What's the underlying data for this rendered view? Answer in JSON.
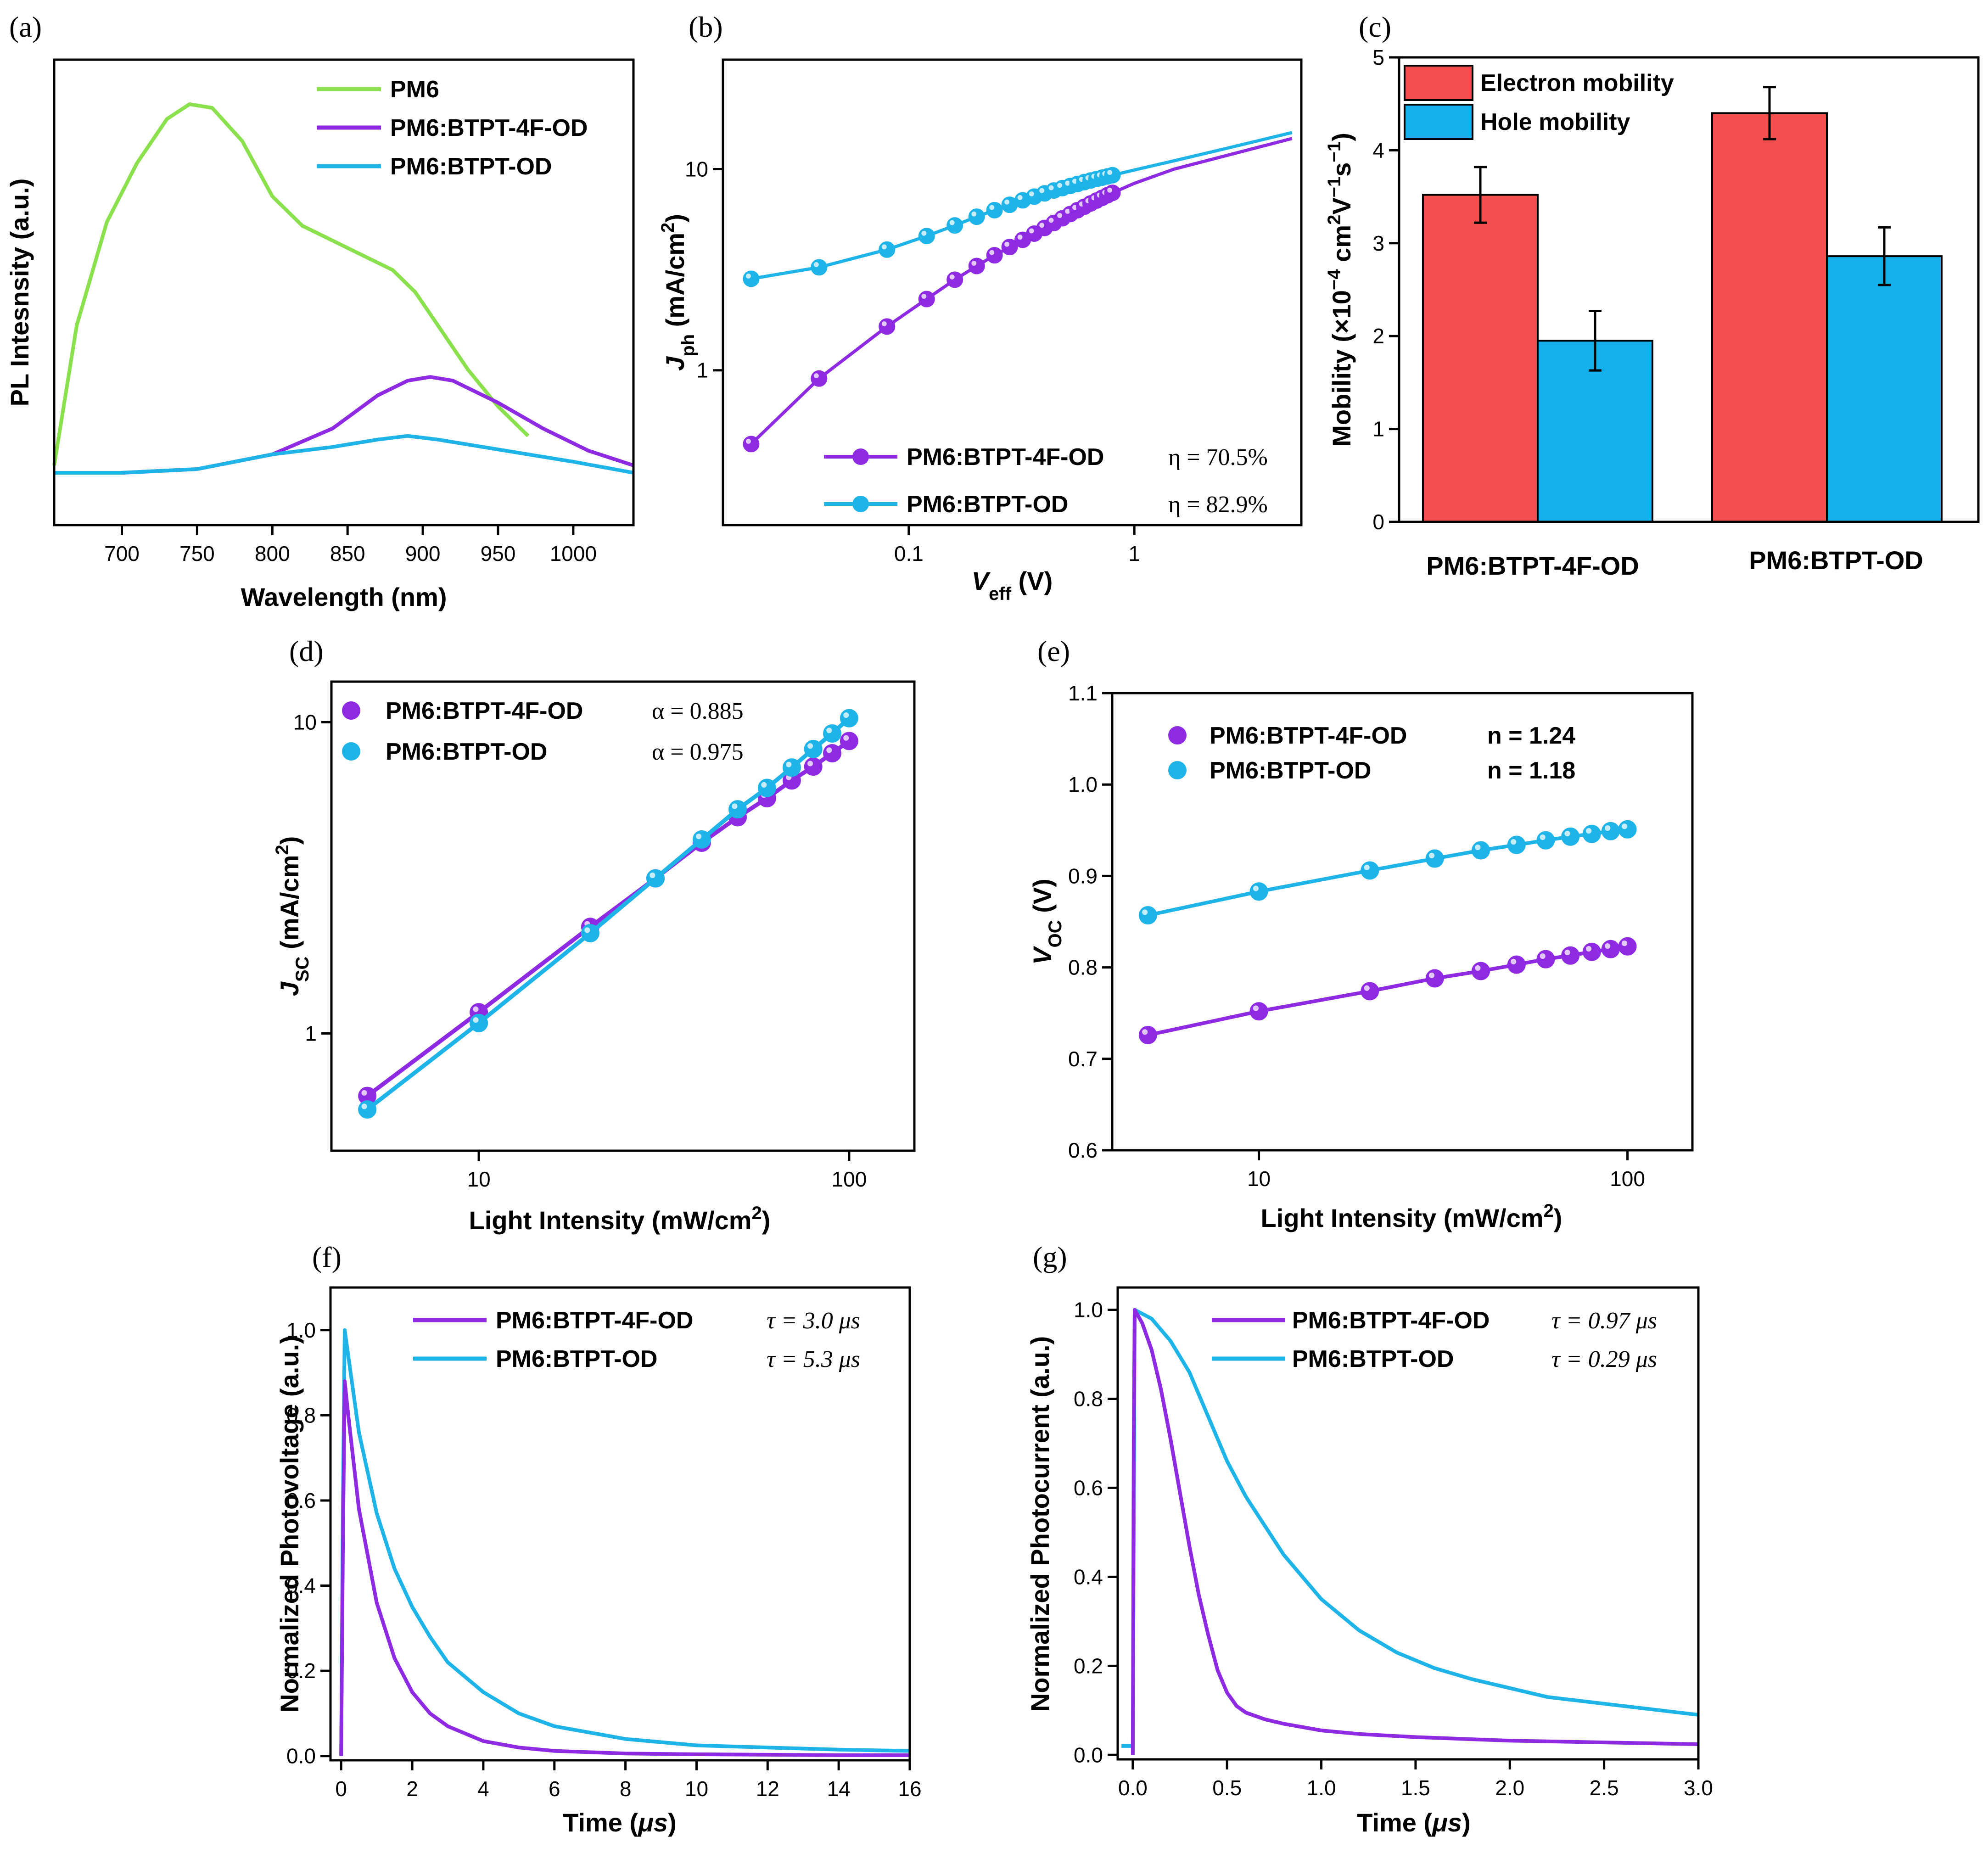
{
  "colors": {
    "green": "#8BE04E",
    "purple": "#8E2BE2",
    "cyan": "#1EB4E8",
    "red": "#F44E4E",
    "bar_cyan": "#14B0EB",
    "axis": "#000000"
  },
  "panels": {
    "a": {
      "label": "(a)"
    },
    "b": {
      "label": "(b)"
    },
    "c": {
      "label": "(c)"
    },
    "d": {
      "label": "(d)"
    },
    "e": {
      "label": "(e)"
    },
    "f": {
      "label": "(f)"
    },
    "g": {
      "label": "(g)"
    }
  },
  "chart_data": [
    {
      "id": "a",
      "type": "line",
      "title": "",
      "xlabel": "Wavelength (nm)",
      "ylabel": "PL Intesnsity (a.u.)",
      "xlim": [
        655,
        1040
      ],
      "ylim": [
        0,
        1.1
      ],
      "xticks": [
        700,
        750,
        800,
        850,
        900,
        950,
        1000
      ],
      "legend": "top-right",
      "series": [
        {
          "name": "PM6",
          "color": "green",
          "x": [
            655,
            670,
            690,
            710,
            730,
            745,
            760,
            780,
            800,
            820,
            850,
            880,
            895,
            910,
            930,
            950,
            970
          ],
          "y": [
            0.02,
            0.4,
            0.68,
            0.84,
            0.96,
            1.0,
            0.99,
            0.9,
            0.75,
            0.67,
            0.61,
            0.55,
            0.49,
            0.4,
            0.28,
            0.18,
            0.1
          ]
        },
        {
          "name": "PM6:BTPT-4F-OD",
          "color": "purple",
          "x": [
            655,
            700,
            750,
            800,
            840,
            870,
            890,
            905,
            920,
            950,
            980,
            1010,
            1040
          ],
          "y": [
            0.0,
            0.0,
            0.01,
            0.05,
            0.12,
            0.21,
            0.25,
            0.26,
            0.25,
            0.19,
            0.12,
            0.06,
            0.02
          ]
        },
        {
          "name": "PM6:BTPT-OD",
          "color": "cyan",
          "x": [
            655,
            700,
            750,
            800,
            840,
            870,
            890,
            910,
            940,
            970,
            1000,
            1040
          ],
          "y": [
            0.0,
            0.0,
            0.01,
            0.05,
            0.07,
            0.09,
            0.1,
            0.09,
            0.07,
            0.05,
            0.03,
            0.0
          ]
        }
      ]
    },
    {
      "id": "b",
      "type": "line",
      "scale": "log-log",
      "title": "",
      "xlabel": "Veff (V)",
      "ylabel": "Jph (mA/cm2)",
      "xlabel_main": "V",
      "xlabel_sub": "eff",
      "xlabel_unit": " (V)",
      "ylabel_main": "J",
      "ylabel_sub": "ph",
      "ylabel_unit": " (mA/cm",
      "ylabel_sup": "2",
      "ylabel_close": ")",
      "xlim": [
        0.015,
        5.5
      ],
      "ylim": [
        0.17,
        35
      ],
      "xticks": [
        0.1,
        1
      ],
      "xtick_labels": [
        "0.1",
        "1"
      ],
      "yticks": [
        1,
        10
      ],
      "ytick_labels": [
        "1",
        "10"
      ],
      "legend": "bottom-right",
      "series": [
        {
          "name": "PM6:BTPT-4F-OD",
          "color": "purple",
          "eta": "η = 70.5%",
          "x": [
            0.02,
            0.04,
            0.08,
            0.12,
            0.16,
            0.2,
            0.24,
            0.28,
            0.32,
            0.36,
            0.4,
            0.44,
            0.48,
            0.52,
            0.56,
            0.6,
            0.64,
            0.68,
            0.72,
            0.76,
            0.8,
            1,
            1.5,
            2.5,
            5
          ],
          "y": [
            0.43,
            0.91,
            1.65,
            2.26,
            2.82,
            3.3,
            3.73,
            4.1,
            4.45,
            4.78,
            5.1,
            5.4,
            5.7,
            5.98,
            6.25,
            6.5,
            6.75,
            6.98,
            7.2,
            7.42,
            7.62,
            8.5,
            10.0,
            11.6,
            14.2
          ]
        },
        {
          "name": "PM6:BTPT-OD",
          "color": "cyan",
          "eta": "η = 82.9%",
          "x": [
            0.02,
            0.04,
            0.08,
            0.12,
            0.16,
            0.2,
            0.24,
            0.28,
            0.32,
            0.36,
            0.4,
            0.44,
            0.48,
            0.52,
            0.56,
            0.6,
            0.64,
            0.68,
            0.72,
            0.76,
            0.8,
            1,
            1.5,
            2.5,
            5
          ],
          "y": [
            2.85,
            3.25,
            3.98,
            4.65,
            5.25,
            5.8,
            6.25,
            6.65,
            7.0,
            7.3,
            7.58,
            7.83,
            8.05,
            8.25,
            8.44,
            8.62,
            8.78,
            8.93,
            9.07,
            9.2,
            9.33,
            9.9,
            11.0,
            12.6,
            15.2
          ]
        }
      ]
    },
    {
      "id": "c",
      "type": "bar",
      "title": "",
      "xlabel": "",
      "ylabel": "Mobility (×10−4 cm2V−1s−1)",
      "ylabel_head": "Mobility (×10",
      "ylabel_e1": "−4",
      "ylabel_mid": " cm",
      "ylabel_e2": "2",
      "ylabel_v": "V",
      "ylabel_e3": "−1",
      "ylabel_s": "s",
      "ylabel_e4": "−1",
      "ylabel_close": ")",
      "categories": [
        "PM6:BTPT-4F-OD",
        "PM6:BTPT-OD"
      ],
      "ylim": [
        0,
        5
      ],
      "yticks": [
        0,
        1,
        2,
        3,
        4,
        5
      ],
      "legend": "top-left",
      "series": [
        {
          "name": "Electron mobility",
          "color": "red",
          "values": [
            3.52,
            4.4
          ],
          "errors": [
            0.3,
            0.28
          ]
        },
        {
          "name": "Hole mobility",
          "color": "bar_cyan",
          "values": [
            1.95,
            2.86
          ],
          "errors": [
            0.32,
            0.31
          ]
        }
      ]
    },
    {
      "id": "d",
      "type": "scatter",
      "scale": "log-log",
      "title": "",
      "xlabel": "Light Intensity (mW/cm2)",
      "ylabel": "Jsc (mA/cm2)",
      "xlabel_main": "Light Intensity (mW/cm",
      "xlabel_sup": "2",
      "xlabel_close": ")",
      "ylabel_main": "J",
      "ylabel_sub": "SC",
      "ylabel_unit": " (mA/cm",
      "ylabel_sup": "2",
      "ylabel_close": ")",
      "xlim": [
        4.0,
        150
      ],
      "ylim": [
        0.42,
        13.5
      ],
      "xticks": [
        10,
        100
      ],
      "xtick_labels": [
        "10",
        "100"
      ],
      "yticks": [
        1,
        10
      ],
      "ytick_labels": [
        "1",
        "10"
      ],
      "legend": "top-left",
      "series": [
        {
          "name": "PM6:BTPT-4F-OD",
          "color": "purple",
          "alpha": "α = 0.885",
          "x": [
            5,
            10,
            20,
            30,
            40,
            50,
            60,
            70,
            80,
            90,
            100
          ],
          "y": [
            0.63,
            1.17,
            2.2,
            3.15,
            4.1,
            4.95,
            5.7,
            6.5,
            7.2,
            7.95,
            8.7
          ]
        },
        {
          "name": "PM6:BTPT-OD",
          "color": "cyan",
          "alpha": "α = 0.975",
          "x": [
            5,
            10,
            20,
            30,
            40,
            50,
            60,
            70,
            80,
            90,
            100
          ],
          "y": [
            0.57,
            1.08,
            2.1,
            3.15,
            4.2,
            5.25,
            6.15,
            7.15,
            8.2,
            9.2,
            10.3
          ]
        }
      ]
    },
    {
      "id": "e",
      "type": "scatter",
      "scale": "log-x",
      "title": "",
      "xlabel": "Light Intensity (mW/cm2)",
      "ylabel": "VOC (V)",
      "xlabel_main": "Light Intensity (mW/cm",
      "xlabel_sup": "2",
      "xlabel_close": ")",
      "ylabel_main": "V",
      "ylabel_sub": "OC",
      "ylabel_unit": " (V)",
      "xlim": [
        4.0,
        150
      ],
      "ylim": [
        0.6,
        1.1
      ],
      "xticks": [
        10,
        100
      ],
      "xtick_labels": [
        "10",
        "100"
      ],
      "yticks": [
        0.6,
        0.7,
        0.8,
        0.9,
        1.0,
        1.1
      ],
      "ytick_labels": [
        "0.6",
        "0.7",
        "0.8",
        "0.9",
        "1.0",
        "1.1"
      ],
      "legend": "top-left",
      "series": [
        {
          "name": "PM6:BTPT-4F-OD",
          "color": "purple",
          "n": "n = 1.24",
          "x": [
            5,
            10,
            20,
            30,
            40,
            50,
            60,
            70,
            80,
            90,
            100
          ],
          "y": [
            0.726,
            0.752,
            0.774,
            0.788,
            0.796,
            0.803,
            0.809,
            0.813,
            0.817,
            0.82,
            0.823
          ]
        },
        {
          "name": "PM6:BTPT-OD",
          "color": "cyan",
          "n": "n = 1.18",
          "x": [
            5,
            10,
            20,
            30,
            40,
            50,
            60,
            70,
            80,
            90,
            100
          ],
          "y": [
            0.857,
            0.883,
            0.906,
            0.919,
            0.928,
            0.934,
            0.939,
            0.943,
            0.946,
            0.949,
            0.951
          ]
        }
      ]
    },
    {
      "id": "f",
      "type": "line",
      "title": "",
      "xlabel": "Time (μs)",
      "ylabel": "Normalized Photovoltage (a.u.)",
      "xlabel_main": "Time (",
      "xlabel_mu": "μs",
      "xlabel_close": ")",
      "xlim": [
        -0.3,
        16
      ],
      "ylim": [
        -0.01,
        1.1
      ],
      "xticks": [
        0,
        2,
        4,
        6,
        8,
        10,
        12,
        14,
        16
      ],
      "yticks": [
        0.0,
        0.2,
        0.4,
        0.6,
        0.8,
        1.0
      ],
      "ytick_labels": [
        "0.0",
        "0.2",
        "0.4",
        "0.6",
        "0.8",
        "1.0"
      ],
      "legend": "top-right",
      "series": [
        {
          "name": "PM6:BTPT-4F-OD",
          "color": "purple",
          "tau": "τ = 3.0 μs",
          "x": [
            0,
            0.05,
            0.1,
            0.2,
            0.5,
            1,
            1.5,
            2,
            2.5,
            3,
            4,
            5,
            6,
            8,
            10,
            12,
            14,
            16
          ],
          "y": [
            0.0,
            0.5,
            0.88,
            0.8,
            0.58,
            0.36,
            0.23,
            0.15,
            0.1,
            0.07,
            0.035,
            0.02,
            0.012,
            0.006,
            0.004,
            0.003,
            0.002,
            0.002
          ]
        },
        {
          "name": "PM6:BTPT-OD",
          "color": "cyan",
          "tau": "τ = 5.3 μs",
          "x": [
            0,
            0.05,
            0.1,
            0.2,
            0.5,
            1,
            1.5,
            2,
            2.5,
            3,
            4,
            5,
            6,
            8,
            10,
            12,
            14,
            16
          ],
          "y": [
            0.0,
            0.6,
            1.0,
            0.94,
            0.76,
            0.57,
            0.44,
            0.35,
            0.28,
            0.22,
            0.15,
            0.1,
            0.07,
            0.04,
            0.025,
            0.02,
            0.015,
            0.012
          ]
        }
      ]
    },
    {
      "id": "g",
      "type": "line",
      "title": "",
      "xlabel": "Time (μs)",
      "ylabel": "Normalized Photocurrent (a.u.)",
      "xlabel_main": "Time (",
      "xlabel_mu": "μs",
      "xlabel_close": ")",
      "xlim": [
        -0.08,
        3.0
      ],
      "ylim": [
        -0.01,
        1.05
      ],
      "xticks": [
        0.0,
        0.5,
        1.0,
        1.5,
        2.0,
        2.5,
        3.0
      ],
      "xtick_labels": [
        "0.0",
        "0.5",
        "1.0",
        "1.5",
        "2.0",
        "2.5",
        "3.0"
      ],
      "yticks": [
        0.0,
        0.2,
        0.4,
        0.6,
        0.8,
        1.0
      ],
      "ytick_labels": [
        "0.0",
        "0.2",
        "0.4",
        "0.6",
        "0.8",
        "1.0"
      ],
      "legend": "top-right",
      "series": [
        {
          "name": "PM6:BTPT-4F-OD",
          "color": "purple",
          "tau": "τ = 0.97 μs",
          "x": [
            0,
            0.005,
            0.01,
            0.05,
            0.1,
            0.15,
            0.2,
            0.25,
            0.3,
            0.35,
            0.4,
            0.45,
            0.5,
            0.55,
            0.6,
            0.7,
            0.8,
            1.0,
            1.2,
            1.5,
            2.0,
            2.5,
            3.0
          ],
          "y": [
            0.0,
            0.7,
            1.0,
            0.97,
            0.91,
            0.82,
            0.71,
            0.59,
            0.47,
            0.36,
            0.27,
            0.19,
            0.14,
            0.11,
            0.095,
            0.08,
            0.07,
            0.055,
            0.047,
            0.04,
            0.032,
            0.028,
            0.024
          ]
        },
        {
          "name": "PM6:BTPT-OD",
          "color": "cyan",
          "tau": "τ = 0.29 μs",
          "x": [
            -0.06,
            -0.02,
            0,
            0.005,
            0.01,
            0.1,
            0.2,
            0.3,
            0.4,
            0.5,
            0.6,
            0.8,
            1.0,
            1.2,
            1.4,
            1.6,
            1.8,
            2.0,
            2.2,
            2.5,
            2.8,
            3.0
          ],
          "y": [
            0.02,
            0.02,
            0.02,
            0.5,
            1.0,
            0.98,
            0.93,
            0.86,
            0.76,
            0.66,
            0.58,
            0.45,
            0.35,
            0.28,
            0.23,
            0.195,
            0.17,
            0.15,
            0.13,
            0.115,
            0.1,
            0.09
          ]
        }
      ]
    }
  ]
}
